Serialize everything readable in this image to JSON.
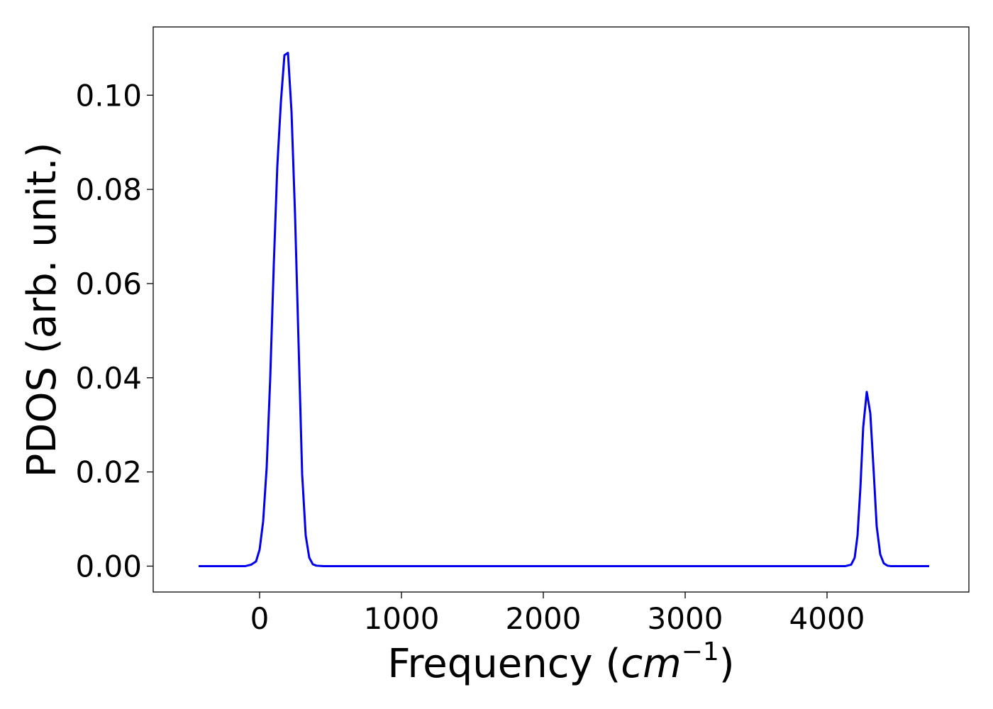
{
  "chart_data": {
    "type": "line",
    "title": "",
    "xlabel": "Frequency (",
    "xlabel_math": "cm",
    "xlabel_sup": "−1",
    "xlabel_close": ")",
    "ylabel": "PDOS (arb. unit.)",
    "xlim": [
      -750,
      5000
    ],
    "ylim": [
      -0.0055,
      0.1145
    ],
    "x_ticks": [
      0,
      1000,
      2000,
      3000,
      4000
    ],
    "x_tick_labels": [
      "0",
      "1000",
      "2000",
      "3000",
      "4000"
    ],
    "y_ticks": [
      0.0,
      0.02,
      0.04,
      0.06,
      0.08,
      0.1
    ],
    "y_tick_labels": [
      "0.00",
      "0.02",
      "0.04",
      "0.06",
      "0.08",
      "0.10"
    ],
    "grid": false,
    "legend": "none",
    "series": [
      {
        "color": "#0000ee",
        "x": [
          -430,
          -200,
          -100,
          -60,
          -25,
          0,
          25,
          50,
          75,
          100,
          125,
          150,
          175,
          200,
          225,
          250,
          275,
          300,
          325,
          350,
          375,
          400,
          450,
          600,
          1000,
          2000,
          3000,
          4000,
          4130,
          4170,
          4195,
          4215,
          4235,
          4255,
          4280,
          4305,
          4330,
          4350,
          4375,
          4400,
          4425,
          4450,
          4500,
          4720
        ],
        "y": [
          0.0,
          0.0,
          0.0,
          0.0003,
          0.001,
          0.0035,
          0.0095,
          0.021,
          0.04,
          0.064,
          0.085,
          0.0985,
          0.1085,
          0.109,
          0.0965,
          0.0745,
          0.047,
          0.0195,
          0.0065,
          0.0018,
          0.0004,
          0.0001,
          0.0,
          0.0,
          0.0,
          0.0,
          0.0,
          0.0,
          0.0,
          0.0003,
          0.0018,
          0.0065,
          0.0165,
          0.0295,
          0.037,
          0.0325,
          0.0195,
          0.0085,
          0.0025,
          0.0006,
          0.0001,
          0.0,
          0.0,
          0.0
        ]
      }
    ]
  }
}
